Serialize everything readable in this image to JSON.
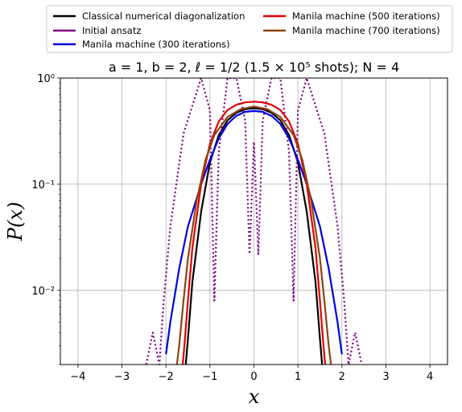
{
  "chart_data": {
    "type": "line",
    "title": "a = 1, b = 2, ℓ = 1/2 (1.5 × 10⁵ shots); N = 4",
    "xlabel": "x",
    "ylabel": "P(x)",
    "xlim": [
      -4.4,
      4.4
    ],
    "ylim": [
      0.002,
      1
    ],
    "yscale": "log",
    "grid": true,
    "legend_position": "top, outside plot, two columns",
    "x_ticks": [
      "−4",
      "−3",
      "−2",
      "−1",
      "0",
      "1",
      "2",
      "3",
      "4"
    ],
    "y_ticks": [
      "10⁰",
      "10⁻¹",
      "10⁻²"
    ],
    "series": [
      {
        "name": "Classical numerical diagonalization",
        "color": "#000000",
        "style": "solid",
        "x": [
          -1.55,
          -1.5,
          -1.4,
          -1.2,
          -1.0,
          -0.8,
          -0.6,
          -0.4,
          -0.2,
          0,
          0.2,
          0.4,
          0.6,
          0.8,
          1.0,
          1.2,
          1.4,
          1.5,
          1.55
        ],
        "y": [
          0.002,
          0.0035,
          0.012,
          0.055,
          0.16,
          0.29,
          0.4,
          0.47,
          0.51,
          0.52,
          0.51,
          0.47,
          0.4,
          0.29,
          0.16,
          0.055,
          0.012,
          0.0035,
          0.002
        ]
      },
      {
        "name": "Initial ansatz",
        "color": "#800080",
        "style": "solid + dotted",
        "x": [
          -2.45,
          -2.3,
          -2.15,
          -2.05,
          -1.9,
          -1.6,
          -1.2,
          -1.0,
          -0.9,
          -0.8,
          -0.6,
          -0.4,
          -0.2,
          -0.1,
          0,
          0.1,
          0.2,
          0.4,
          0.6,
          0.8,
          0.9,
          1.0,
          1.2,
          1.6,
          1.9,
          2.05,
          2.15,
          2.3,
          2.45
        ],
        "y": [
          0.002,
          0.004,
          0.002,
          0.008,
          0.04,
          0.3,
          1.0,
          0.5,
          0.008,
          0.2,
          1.0,
          1.0,
          0.4,
          0.022,
          0.25,
          0.022,
          0.4,
          1.0,
          1.0,
          0.2,
          0.008,
          0.5,
          1.0,
          0.3,
          0.04,
          0.008,
          0.002,
          0.004,
          0.002
        ]
      },
      {
        "name": "Manila machine (300 iterations)",
        "color": "#0000e0",
        "style": "solid",
        "x": [
          -2.0,
          -1.9,
          -1.7,
          -1.5,
          -1.2,
          -1.0,
          -0.8,
          -0.6,
          -0.4,
          -0.2,
          0,
          0.2,
          0.4,
          0.6,
          0.8,
          1.0,
          1.2,
          1.5,
          1.7,
          1.9,
          2.0
        ],
        "y": [
          0.0025,
          0.005,
          0.016,
          0.04,
          0.1,
          0.17,
          0.27,
          0.37,
          0.44,
          0.48,
          0.49,
          0.48,
          0.44,
          0.37,
          0.27,
          0.17,
          0.1,
          0.04,
          0.016,
          0.005,
          0.0025
        ]
      },
      {
        "name": "Manila machine (500 iterations)",
        "color": "#e00000",
        "style": "solid",
        "x": [
          -1.62,
          -1.58,
          -1.5,
          -1.4,
          -1.2,
          -1.0,
          -0.8,
          -0.6,
          -0.4,
          -0.2,
          0,
          0.2,
          0.4,
          0.6,
          0.8,
          1.0,
          1.2,
          1.4,
          1.5,
          1.58,
          1.62
        ],
        "y": [
          0.002,
          0.003,
          0.008,
          0.025,
          0.1,
          0.24,
          0.39,
          0.5,
          0.56,
          0.59,
          0.6,
          0.59,
          0.56,
          0.5,
          0.39,
          0.24,
          0.1,
          0.025,
          0.008,
          0.003,
          0.002
        ]
      },
      {
        "name": "Manila machine (700 iterations)",
        "color": "#8b4513",
        "style": "solid",
        "x": [
          -1.75,
          -1.7,
          -1.6,
          -1.5,
          -1.3,
          -1.1,
          -0.9,
          -0.6,
          -0.3,
          0,
          0.3,
          0.6,
          0.9,
          1.1,
          1.3,
          1.5,
          1.6,
          1.7,
          1.75
        ],
        "y": [
          0.002,
          0.003,
          0.008,
          0.02,
          0.07,
          0.17,
          0.29,
          0.43,
          0.51,
          0.54,
          0.51,
          0.43,
          0.29,
          0.17,
          0.07,
          0.02,
          0.008,
          0.003,
          0.002
        ]
      }
    ]
  }
}
